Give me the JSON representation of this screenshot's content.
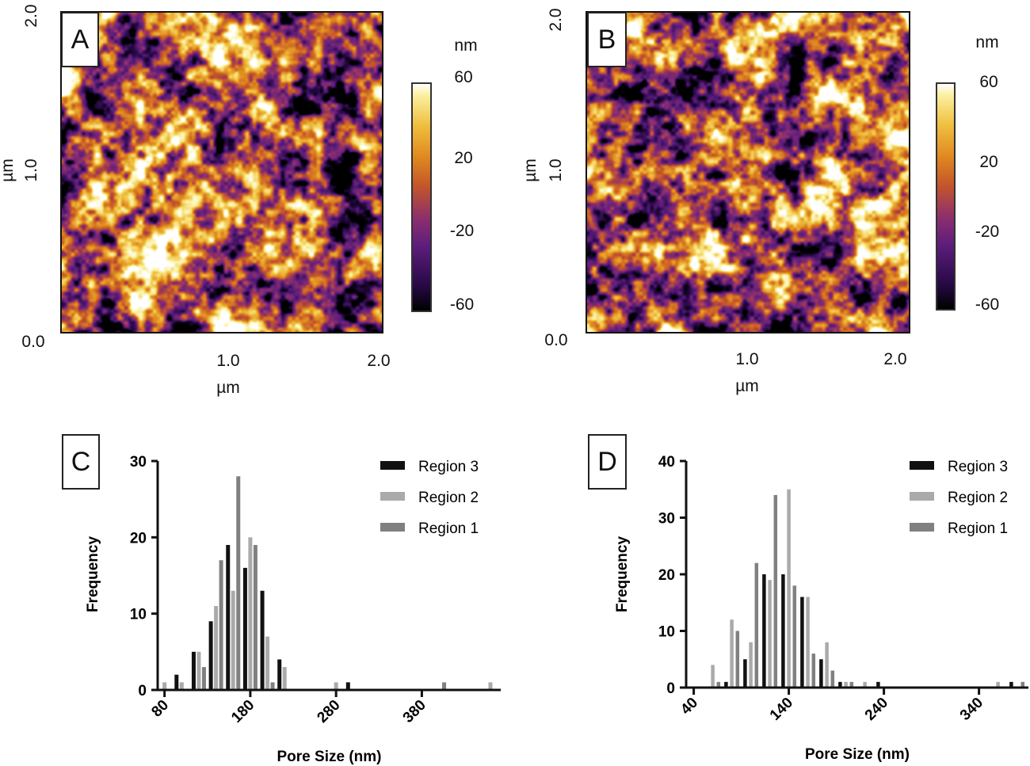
{
  "panels": {
    "A": {
      "label": "A",
      "y_ticks": [
        "2.0",
        "1.0"
      ],
      "origin": "0.0",
      "x_ticks": [
        "1.0",
        "2.0"
      ],
      "x_unit": "µm",
      "y_unit": "µm",
      "colorbar": {
        "unit": "nm",
        "ticks": [
          "60",
          "20",
          "-20",
          "-60"
        ]
      }
    },
    "B": {
      "label": "B",
      "y_ticks": [
        "2.0",
        "1.0"
      ],
      "origin": "0.0",
      "x_ticks": [
        "1.0",
        "2.0"
      ],
      "x_unit": "µm",
      "y_unit": "µm",
      "colorbar": {
        "unit": "nm",
        "ticks": [
          "60",
          "20",
          "-20",
          "-60"
        ]
      }
    },
    "C": {
      "label": "C"
    },
    "D": {
      "label": "D"
    }
  },
  "colormap": [
    "#000000",
    "#2a0a4a",
    "#5b1d7a",
    "#8a2d70",
    "#c4562a",
    "#e08a20",
    "#f0c040",
    "#fbf0a0",
    "#ffffff"
  ],
  "chart_data": [
    {
      "type": "bar",
      "panel": "C",
      "xlabel": "Pore Size (nm)",
      "ylabel": "Frequency",
      "xlim": [
        72,
        472
      ],
      "ylim": [
        0,
        30
      ],
      "x_ticks": [
        "80",
        "180",
        "280",
        "380"
      ],
      "y_ticks": [
        "0",
        "10",
        "20",
        "30"
      ],
      "legend": "top-right",
      "x": [
        80,
        100,
        120,
        140,
        160,
        180,
        200,
        220,
        280,
        300,
        400,
        460
      ],
      "series": [
        {
          "name": "Region 3",
          "color": "#111111",
          "values": [
            0,
            2,
            5,
            9,
            19,
            16,
            13,
            4,
            0,
            1,
            0,
            0
          ]
        },
        {
          "name": "Region 2",
          "color": "#aaaaaa",
          "values": [
            1,
            1,
            5,
            11,
            13,
            20,
            7,
            3,
            1,
            0,
            0,
            1
          ]
        },
        {
          "name": "Region 1",
          "color": "#808080",
          "values": [
            0,
            0,
            3,
            17,
            28,
            19,
            1,
            0,
            0,
            0,
            1,
            0
          ]
        }
      ]
    },
    {
      "type": "bar",
      "panel": "D",
      "xlabel": "Pore Size (nm)",
      "ylabel": "Frequency",
      "xlim": [
        32,
        392
      ],
      "ylim": [
        0,
        40
      ],
      "x_ticks": [
        "40",
        "140",
        "240",
        "340"
      ],
      "y_ticks": [
        "0",
        "10",
        "20",
        "30",
        "40"
      ],
      "legend": "top-right",
      "x": [
        60,
        80,
        100,
        120,
        140,
        160,
        180,
        200,
        220,
        240,
        360,
        380
      ],
      "series": [
        {
          "name": "Region 3",
          "color": "#111111",
          "values": [
            0,
            1,
            5,
            20,
            20,
            16,
            5,
            1,
            0,
            1,
            0,
            1
          ]
        },
        {
          "name": "Region 2",
          "color": "#aaaaaa",
          "values": [
            4,
            12,
            8,
            19,
            35,
            16,
            8,
            1,
            1,
            0,
            1,
            0
          ]
        },
        {
          "name": "Region 1",
          "color": "#808080",
          "values": [
            1,
            10,
            22,
            34,
            18,
            6,
            3,
            1,
            0,
            0,
            0,
            1
          ]
        }
      ]
    }
  ]
}
